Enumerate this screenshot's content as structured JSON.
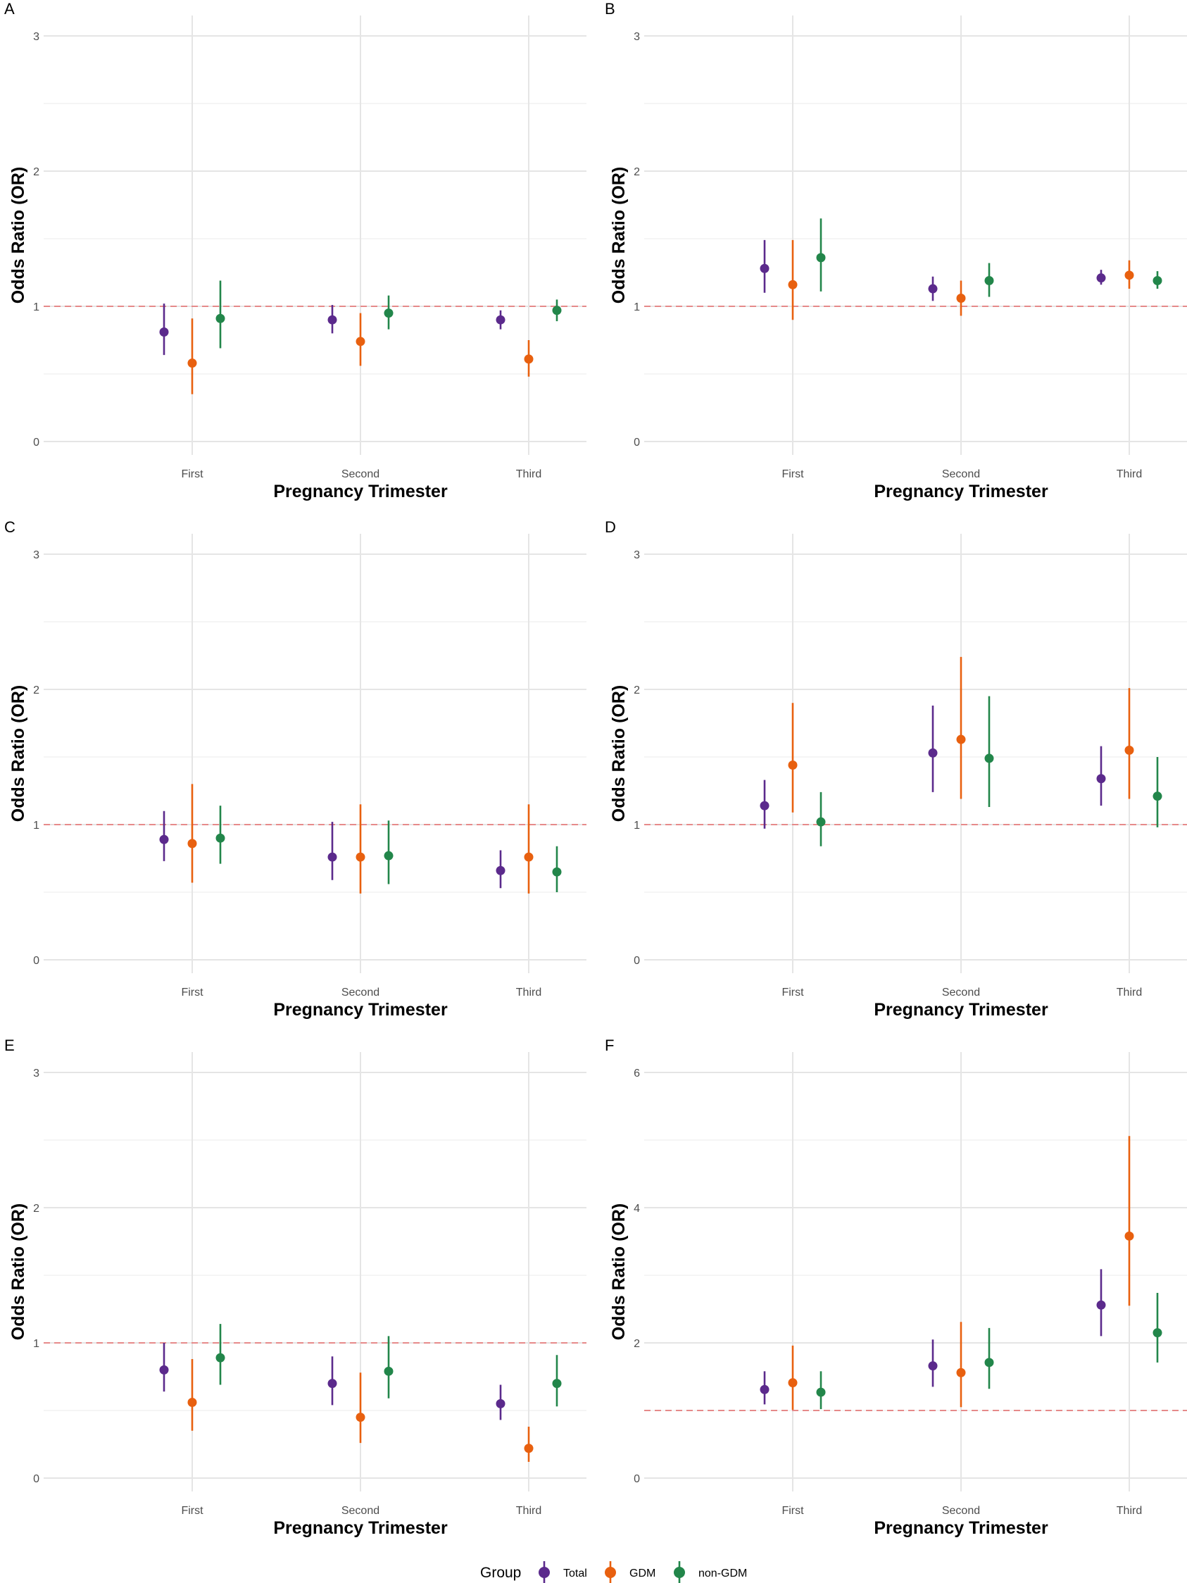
{
  "colors": {
    "Total": "#5b2a8c",
    "GDM": "#e8600f",
    "non-GDM": "#22864a",
    "ref_line": "#e68a8a",
    "grid_major": "#e5e5e5",
    "grid_minor": "#f2f2f2"
  },
  "legend": {
    "title": "Group",
    "entries": [
      "Total",
      "GDM",
      "non-GDM"
    ]
  },
  "chart_data": [
    {
      "label": "A",
      "type": "scatter",
      "xlabel": "Pregnancy Trimester",
      "ylabel": "Odds Ratio (OR)",
      "categories": [
        "First",
        "Second",
        "Third"
      ],
      "ylim": [
        0,
        3
      ],
      "yticks": [
        0,
        1,
        2,
        3
      ],
      "ref_line": 1,
      "series": [
        {
          "name": "Total",
          "values": [
            0.81,
            0.9,
            0.9
          ],
          "lower": [
            0.64,
            0.8,
            0.83
          ],
          "upper": [
            1.02,
            1.01,
            0.97
          ]
        },
        {
          "name": "GDM",
          "values": [
            0.58,
            0.74,
            0.61
          ],
          "lower": [
            0.35,
            0.56,
            0.48
          ],
          "upper": [
            0.91,
            0.95,
            0.75
          ]
        },
        {
          "name": "non-GDM",
          "values": [
            0.91,
            0.95,
            0.97
          ],
          "lower": [
            0.69,
            0.83,
            0.89
          ],
          "upper": [
            1.19,
            1.08,
            1.05
          ]
        }
      ]
    },
    {
      "label": "B",
      "type": "scatter",
      "xlabel": "Pregnancy Trimester",
      "ylabel": "Odds Ratio (OR)",
      "categories": [
        "First",
        "Second",
        "Third"
      ],
      "ylim": [
        0,
        3
      ],
      "yticks": [
        0,
        1,
        2,
        3
      ],
      "ref_line": 1,
      "series": [
        {
          "name": "Total",
          "values": [
            1.28,
            1.13,
            1.21
          ],
          "lower": [
            1.1,
            1.04,
            1.16
          ],
          "upper": [
            1.49,
            1.22,
            1.27
          ]
        },
        {
          "name": "GDM",
          "values": [
            1.16,
            1.06,
            1.23
          ],
          "lower": [
            0.9,
            0.93,
            1.13
          ],
          "upper": [
            1.49,
            1.19,
            1.34
          ]
        },
        {
          "name": "non-GDM",
          "values": [
            1.36,
            1.19,
            1.19
          ],
          "lower": [
            1.11,
            1.07,
            1.13
          ],
          "upper": [
            1.65,
            1.32,
            1.26
          ]
        }
      ]
    },
    {
      "label": "C",
      "type": "scatter",
      "xlabel": "Pregnancy Trimester",
      "ylabel": "Odds Ratio (OR)",
      "categories": [
        "First",
        "Second",
        "Third"
      ],
      "ylim": [
        0,
        3
      ],
      "yticks": [
        0,
        1,
        2,
        3
      ],
      "ref_line": 1,
      "series": [
        {
          "name": "Total",
          "values": [
            0.89,
            0.76,
            0.66
          ],
          "lower": [
            0.73,
            0.59,
            0.53
          ],
          "upper": [
            1.1,
            1.02,
            0.81
          ]
        },
        {
          "name": "GDM",
          "values": [
            0.86,
            0.76,
            0.76
          ],
          "lower": [
            0.57,
            0.49,
            0.49
          ],
          "upper": [
            1.3,
            1.15,
            1.15
          ]
        },
        {
          "name": "non-GDM",
          "values": [
            0.9,
            0.77,
            0.65
          ],
          "lower": [
            0.71,
            0.56,
            0.5
          ],
          "upper": [
            1.14,
            1.03,
            0.84
          ]
        }
      ]
    },
    {
      "label": "D",
      "type": "scatter",
      "xlabel": "Pregnancy Trimester",
      "ylabel": "Odds Ratio (OR)",
      "categories": [
        "First",
        "Second",
        "Third"
      ],
      "ylim": [
        0,
        3
      ],
      "yticks": [
        0,
        1,
        2,
        3
      ],
      "ref_line": 1,
      "series": [
        {
          "name": "Total",
          "values": [
            1.14,
            1.53,
            1.34
          ],
          "lower": [
            0.97,
            1.24,
            1.14
          ],
          "upper": [
            1.33,
            1.88,
            1.58
          ]
        },
        {
          "name": "GDM",
          "values": [
            1.44,
            1.63,
            1.55
          ],
          "lower": [
            1.09,
            1.19,
            1.19
          ],
          "upper": [
            1.9,
            2.24,
            2.01
          ]
        },
        {
          "name": "non-GDM",
          "values": [
            1.02,
            1.49,
            1.21
          ],
          "lower": [
            0.84,
            1.13,
            0.98
          ],
          "upper": [
            1.24,
            1.95,
            1.5
          ]
        }
      ]
    },
    {
      "label": "E",
      "type": "scatter",
      "xlabel": "Pregnancy Trimester",
      "ylabel": "Odds Ratio (OR)",
      "categories": [
        "First",
        "Second",
        "Third"
      ],
      "ylim": [
        0,
        3
      ],
      "yticks": [
        0,
        1,
        2,
        3
      ],
      "ref_line": 1,
      "series": [
        {
          "name": "Total",
          "values": [
            0.8,
            0.7,
            0.55
          ],
          "lower": [
            0.64,
            0.54,
            0.43
          ],
          "upper": [
            1.0,
            0.9,
            0.69
          ]
        },
        {
          "name": "GDM",
          "values": [
            0.56,
            0.45,
            0.22
          ],
          "lower": [
            0.35,
            0.26,
            0.12
          ],
          "upper": [
            0.88,
            0.78,
            0.38
          ]
        },
        {
          "name": "non-GDM",
          "values": [
            0.89,
            0.79,
            0.7
          ],
          "lower": [
            0.69,
            0.59,
            0.53
          ],
          "upper": [
            1.14,
            1.05,
            0.91
          ]
        }
      ]
    },
    {
      "label": "F",
      "type": "scatter",
      "xlabel": "Pregnancy Trimester",
      "ylabel": "Odds Ratio (OR)",
      "categories": [
        "First",
        "Second",
        "Third"
      ],
      "ylim": [
        0,
        6
      ],
      "yticks": [
        0,
        2,
        4,
        6
      ],
      "ref_line": 1,
      "series": [
        {
          "name": "Total",
          "values": [
            1.31,
            1.66,
            2.56
          ],
          "lower": [
            1.09,
            1.35,
            2.1
          ],
          "upper": [
            1.58,
            2.05,
            3.09
          ]
        },
        {
          "name": "GDM",
          "values": [
            1.41,
            1.56,
            3.58
          ],
          "lower": [
            1.01,
            1.05,
            2.55
          ],
          "upper": [
            1.96,
            2.31,
            5.06
          ]
        },
        {
          "name": "non-GDM",
          "values": [
            1.27,
            1.71,
            2.15
          ],
          "lower": [
            1.02,
            1.32,
            1.71
          ],
          "upper": [
            1.58,
            2.22,
            2.74
          ]
        }
      ]
    }
  ]
}
